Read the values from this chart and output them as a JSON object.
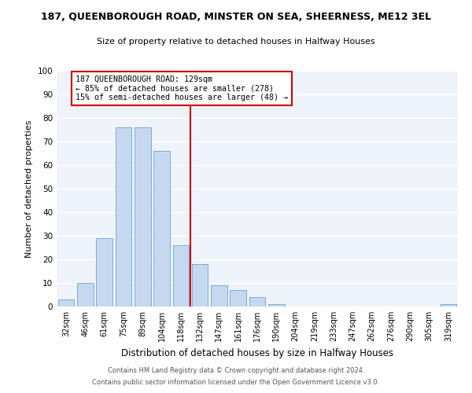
{
  "title": "187, QUEENBOROUGH ROAD, MINSTER ON SEA, SHEERNESS, ME12 3EL",
  "subtitle": "Size of property relative to detached houses in Halfway Houses",
  "xlabel": "Distribution of detached houses by size in Halfway Houses",
  "ylabel": "Number of detached properties",
  "bar_labels": [
    "32sqm",
    "46sqm",
    "61sqm",
    "75sqm",
    "89sqm",
    "104sqm",
    "118sqm",
    "132sqm",
    "147sqm",
    "161sqm",
    "176sqm",
    "190sqm",
    "204sqm",
    "219sqm",
    "233sqm",
    "247sqm",
    "262sqm",
    "276sqm",
    "290sqm",
    "305sqm",
    "319sqm"
  ],
  "bar_values": [
    3,
    10,
    29,
    76,
    76,
    66,
    26,
    18,
    9,
    7,
    4,
    1,
    0,
    0,
    0,
    0,
    0,
    0,
    0,
    0,
    1
  ],
  "bar_color": "#c5d8f0",
  "bar_edge_color": "#7aadd4",
  "vline_color": "#cc0000",
  "vline_index": 6.5,
  "annotation_title": "187 QUEENBOROUGH ROAD: 129sqm",
  "annotation_line1": "← 85% of detached houses are smaller (278)",
  "annotation_line2": "15% of semi-detached houses are larger (48) →",
  "annotation_box_color": "#ffffff",
  "annotation_box_edgecolor": "#cc0000",
  "ylim": [
    0,
    100
  ],
  "yticks": [
    0,
    10,
    20,
    30,
    40,
    50,
    60,
    70,
    80,
    90,
    100
  ],
  "bg_color": "#eef3f9",
  "grid_color": "#ffffff",
  "footer1": "Contains HM Land Registry data © Crown copyright and database right 2024.",
  "footer2": "Contains public sector information licensed under the Open Government Licence v3.0."
}
